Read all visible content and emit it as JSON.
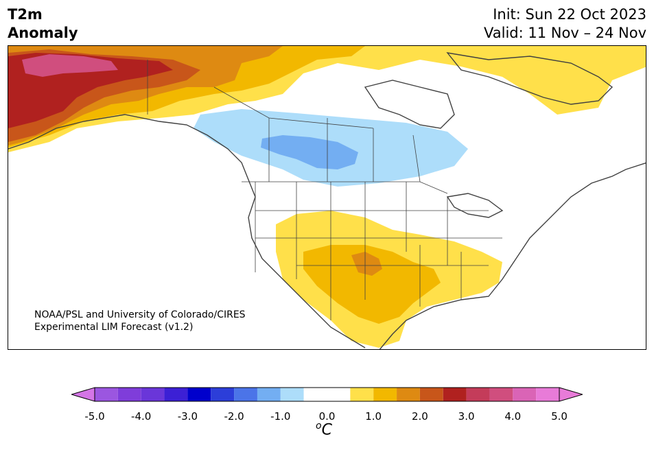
{
  "title": {
    "variable_line1": "T2m",
    "variable_line2": "Anomaly",
    "init": "Init: Sun 22 Oct 2023",
    "valid": "Valid: 11 Nov – 24 Nov"
  },
  "credit": {
    "line1": "NOAA/PSL and University of Colorado/CIRES",
    "line2": "Experimental LIM Forecast (v1.2)"
  },
  "colorbar": {
    "unit_base": "C",
    "unit_prefix": "o",
    "tick_labels": [
      "-5.0",
      "-4.0",
      "-3.0",
      "-2.0",
      "-1.0",
      "0.0",
      "1.0",
      "2.0",
      "3.0",
      "4.0",
      "5.0"
    ],
    "bins": [
      {
        "lo": -5.0,
        "hi": -4.5,
        "color": "#9B56E0"
      },
      {
        "lo": -4.5,
        "hi": -4.0,
        "color": "#7F3DDA"
      },
      {
        "lo": -4.0,
        "hi": -3.5,
        "color": "#6A36D9"
      },
      {
        "lo": -3.5,
        "hi": -3.0,
        "color": "#3C20D5"
      },
      {
        "lo": -3.0,
        "hi": -2.5,
        "color": "#0000CC"
      },
      {
        "lo": -2.5,
        "hi": -2.0,
        "color": "#2C3ED9"
      },
      {
        "lo": -2.0,
        "hi": -1.5,
        "color": "#4B74E8"
      },
      {
        "lo": -1.5,
        "hi": -1.0,
        "color": "#73AEF2"
      },
      {
        "lo": -1.0,
        "hi": -0.5,
        "color": "#ADDDFA"
      },
      {
        "lo": -0.5,
        "hi": 0.5,
        "color": "#FFFFFF"
      },
      {
        "lo": 0.5,
        "hi": 1.0,
        "color": "#FFE04A"
      },
      {
        "lo": 1.0,
        "hi": 1.5,
        "color": "#F2B800"
      },
      {
        "lo": 1.5,
        "hi": 2.0,
        "color": "#DE8A12"
      },
      {
        "lo": 2.0,
        "hi": 2.5,
        "color": "#C8561A"
      },
      {
        "lo": 2.5,
        "hi": 3.0,
        "color": "#B0211F"
      },
      {
        "lo": 3.0,
        "hi": 3.5,
        "color": "#C43C5A"
      },
      {
        "lo": 3.5,
        "hi": 4.0,
        "color": "#D04E7E"
      },
      {
        "lo": 4.0,
        "hi": 4.5,
        "color": "#DA64B6"
      },
      {
        "lo": 4.5,
        "hi": 5.0,
        "color": "#E87BD8"
      }
    ],
    "under_color": "#D475E6",
    "over_color": "#E87BD8"
  },
  "map_colors": {
    "land_line": "#404040",
    "pink": "#D04E7E",
    "darkred": "#B0211F",
    "redorange": "#C8561A",
    "orange": "#DE8A12",
    "gold": "#F2B800",
    "yellow": "#FFE04A",
    "lightblue": "#ADDDFA",
    "blue": "#73AEF2"
  }
}
